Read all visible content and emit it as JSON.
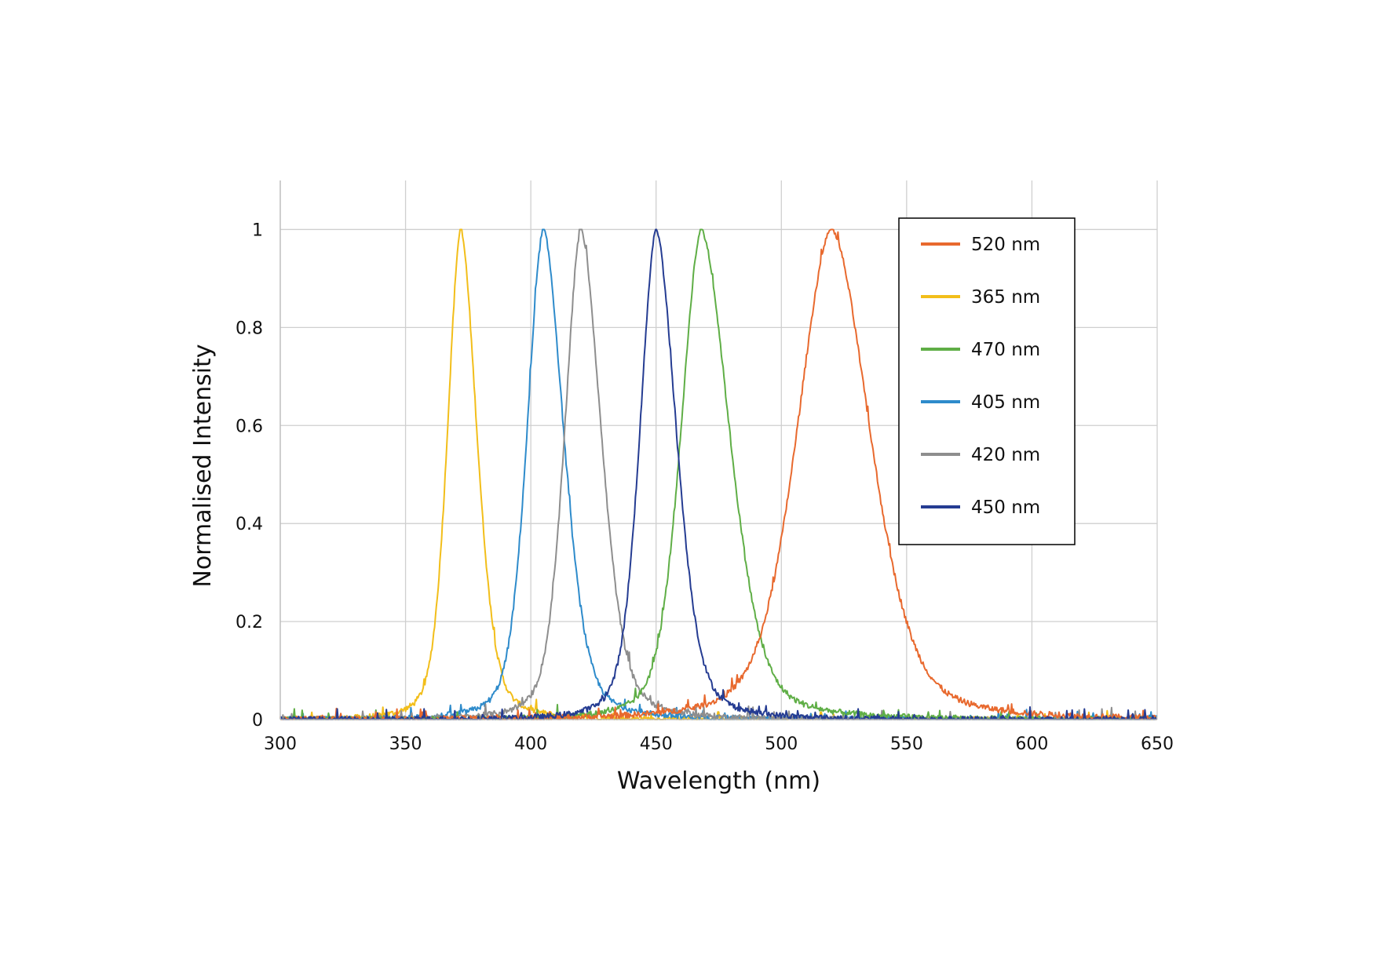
{
  "chart_data": {
    "type": "line",
    "title": "",
    "xlabel": "Wavelength (nm)",
    "ylabel": "Normalised Intensity",
    "xlim": [
      300,
      650
    ],
    "ylim": [
      0,
      1.1
    ],
    "x_ticks": [
      "300",
      "350",
      "400",
      "450",
      "500",
      "550",
      "600",
      "650"
    ],
    "y_ticks": [
      "0",
      "0.2",
      "0.4",
      "0.6",
      "0.8",
      "1"
    ],
    "grid": true,
    "legend_position": "top-right",
    "series": [
      {
        "name": "520 nm",
        "color": "#E8692E",
        "peak": 520,
        "fwhm_left": 17,
        "fwhm_right": 19,
        "values_summary": {
          "x_at_max": 520,
          "max": 1,
          "baseline": 0
        }
      },
      {
        "name": "365 nm",
        "color": "#F2BE1A",
        "peak": 372,
        "fwhm_left": 6.5,
        "fwhm_right": 8,
        "values_summary": {
          "x_at_max": 372,
          "max": 1,
          "baseline": 0
        }
      },
      {
        "name": "470 nm",
        "color": "#5FAE46",
        "peak": 468,
        "fwhm_left": 10,
        "fwhm_right": 14,
        "values_summary": {
          "x_at_max": 468,
          "max": 1,
          "baseline": 0
        }
      },
      {
        "name": "405 nm",
        "color": "#2E8BCB",
        "peak": 405,
        "fwhm_left": 8,
        "fwhm_right": 10,
        "values_summary": {
          "x_at_max": 405,
          "max": 1,
          "baseline": 0
        }
      },
      {
        "name": "420 nm",
        "color": "#8E8E8E",
        "peak": 420,
        "fwhm_left": 8,
        "fwhm_right": 10,
        "values_summary": {
          "x_at_max": 420,
          "max": 1,
          "baseline": 0
        }
      },
      {
        "name": "450 nm",
        "color": "#253C92",
        "peak": 450,
        "fwhm_left": 8,
        "fwhm_right": 10,
        "values_summary": {
          "x_at_max": 450,
          "max": 1,
          "baseline": 0
        }
      }
    ]
  }
}
